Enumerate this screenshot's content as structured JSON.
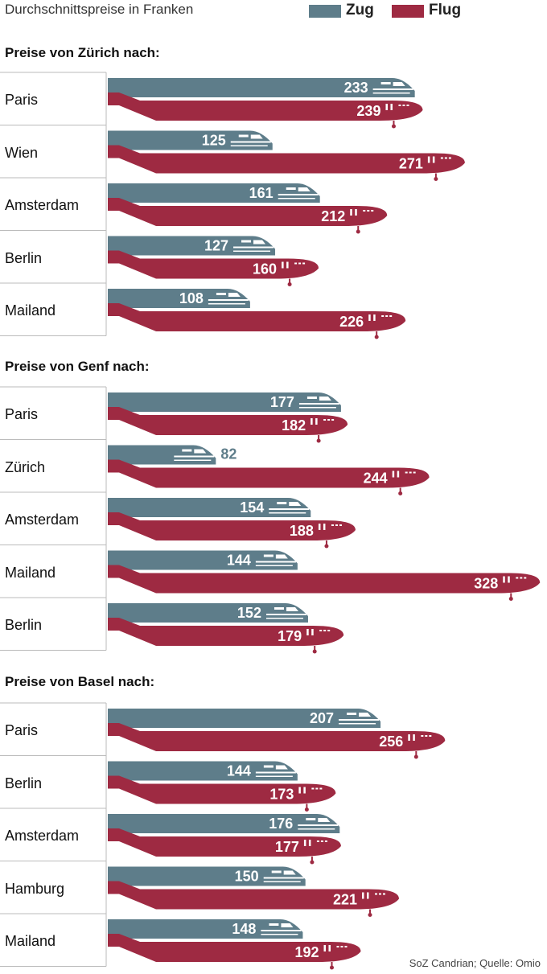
{
  "colors": {
    "train": "#5e7d8a",
    "plane": "#9e2a42",
    "grid": "#bbbbbb",
    "text_dark": "#111111",
    "value_on_bar": "#ffffff",
    "value_outside": "#5e7d8a"
  },
  "subtitle": "Durchschnittspreise in Franken",
  "legend": [
    {
      "label": "Zug",
      "color": "#5e7d8a"
    },
    {
      "label": "Flug",
      "color": "#9e2a42"
    }
  ],
  "source": "SoZ Candrian; Quelle: Omio",
  "chart_data": [
    {
      "type": "bar",
      "title": "Preise von Zürich nach:",
      "categories": [
        "Paris",
        "Wien",
        "Amsterdam",
        "Berlin",
        "Mailand"
      ],
      "series": [
        {
          "name": "Zug",
          "values": [
            233,
            125,
            161,
            127,
            108
          ]
        },
        {
          "name": "Flug",
          "values": [
            239,
            271,
            212,
            160,
            226
          ]
        }
      ],
      "ylim": [
        0,
        328
      ]
    },
    {
      "type": "bar",
      "title": "Preise von Genf nach:",
      "categories": [
        "Paris",
        "Zürich",
        "Amsterdam",
        "Mailand",
        "Berlin"
      ],
      "series": [
        {
          "name": "Zug",
          "values": [
            177,
            82,
            154,
            144,
            152
          ]
        },
        {
          "name": "Flug",
          "values": [
            182,
            244,
            188,
            328,
            179
          ]
        }
      ],
      "ylim": [
        0,
        328
      ]
    },
    {
      "type": "bar",
      "title": "Preise von Basel nach:",
      "categories": [
        "Paris",
        "Berlin",
        "Amsterdam",
        "Hamburg",
        "Mailand"
      ],
      "series": [
        {
          "name": "Zug",
          "values": [
            207,
            144,
            176,
            150,
            148
          ]
        },
        {
          "name": "Flug",
          "values": [
            256,
            173,
            177,
            221,
            192
          ]
        }
      ],
      "ylim": [
        0,
        328
      ]
    }
  ]
}
